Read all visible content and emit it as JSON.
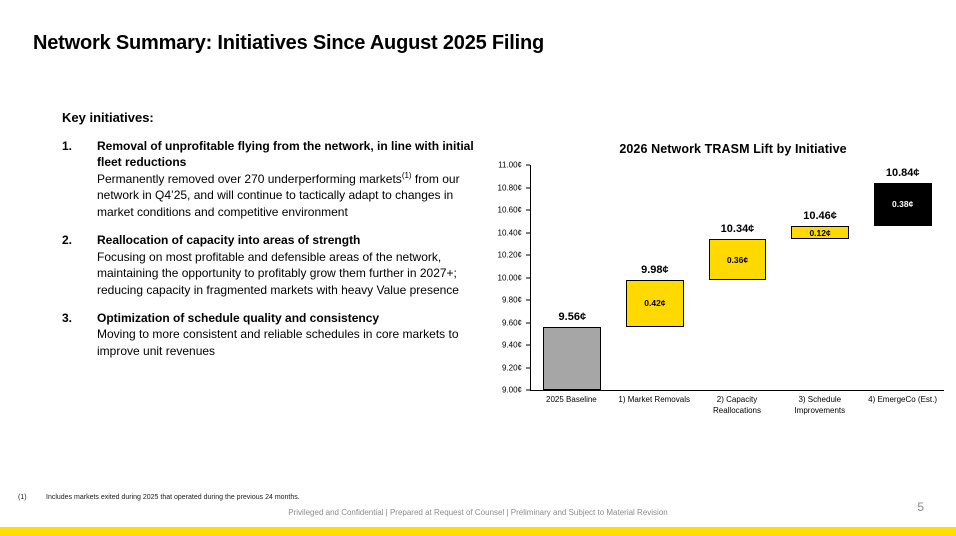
{
  "slide": {
    "title": "Network Summary: Initiatives Since August 2025 Filing",
    "page_number": "5",
    "footer": "Privileged and Confidential | Prepared at Request of Counsel | Preliminary and Subject to Material Revision",
    "footnote_marker": "(1)",
    "footnote_text": "Includes markets exited during 2025 that operated during the previous 24 months.",
    "accent_color": "#ffdf00"
  },
  "key_initiatives": {
    "heading": "Key initiatives:",
    "items": [
      {
        "number": "1.",
        "title": "Removal of unprofitable flying from the network, in line with initial fleet reductions",
        "body_pre": "Permanently removed over 270 underperforming markets",
        "body_sup": "(1)",
        "body_post": " from our network in Q4’25, and will continue to tactically adapt to changes in market conditions and competitive environment"
      },
      {
        "number": "2.",
        "title": "Reallocation of capacity into areas of strength",
        "body": "Focusing on most profitable and defensible areas of the network, maintaining the opportunity to profitably grow them further in 2027+; reducing capacity in fragmented markets with heavy Value presence"
      },
      {
        "number": "3.",
        "title": "Optimization of schedule quality and consistency",
        "body": "Moving to more consistent and reliable schedules in core markets to improve unit revenues"
      }
    ]
  },
  "chart_data": {
    "type": "bar",
    "subtype": "waterfall",
    "title": "2026 Network TRASM Lift by Initiative",
    "unit": "¢",
    "ylim": [
      9.0,
      11.0
    ],
    "ytick_interval": 0.2,
    "yticks": [
      "9.00¢",
      "9.20¢",
      "9.40¢",
      "9.60¢",
      "9.80¢",
      "10.00¢",
      "10.20¢",
      "10.40¢",
      "10.60¢",
      "10.80¢",
      "11.00¢"
    ],
    "categories": [
      "2025 Baseline",
      "1) Market Removals",
      "2) Capacity Reallocations",
      "3) Schedule Improvements",
      "4) EmergeCo (Est.)"
    ],
    "bars": [
      {
        "category": "2025 Baseline",
        "start": 9.0,
        "end": 9.56,
        "total_label": "9.56¢",
        "segment_label": "",
        "fill": "#a6a6a6",
        "text": "#000000"
      },
      {
        "category": "1) Market Removals",
        "start": 9.56,
        "end": 9.98,
        "total_label": "9.98¢",
        "segment_label": "0.42¢",
        "fill": "#ffd900",
        "text": "#000000"
      },
      {
        "category": "2) Capacity Reallocations",
        "start": 9.98,
        "end": 10.34,
        "total_label": "10.34¢",
        "segment_label": "0.36¢",
        "fill": "#ffd900",
        "text": "#000000"
      },
      {
        "category": "3) Schedule Improvements",
        "start": 10.34,
        "end": 10.46,
        "total_label": "10.46¢",
        "segment_label": "0.12¢",
        "fill": "#ffd900",
        "text": "#000000"
      },
      {
        "category": "4) EmergeCo (Est.)",
        "start": 10.46,
        "end": 10.84,
        "total_label": "10.84¢",
        "segment_label": "0.38¢",
        "fill": "#000000",
        "text": "#ffffff"
      }
    ],
    "legend": "none",
    "grid": "off",
    "colors": {
      "baseline": "#a6a6a6",
      "initiative": "#ffd900",
      "emergeco": "#000000",
      "border": "#000000"
    }
  }
}
